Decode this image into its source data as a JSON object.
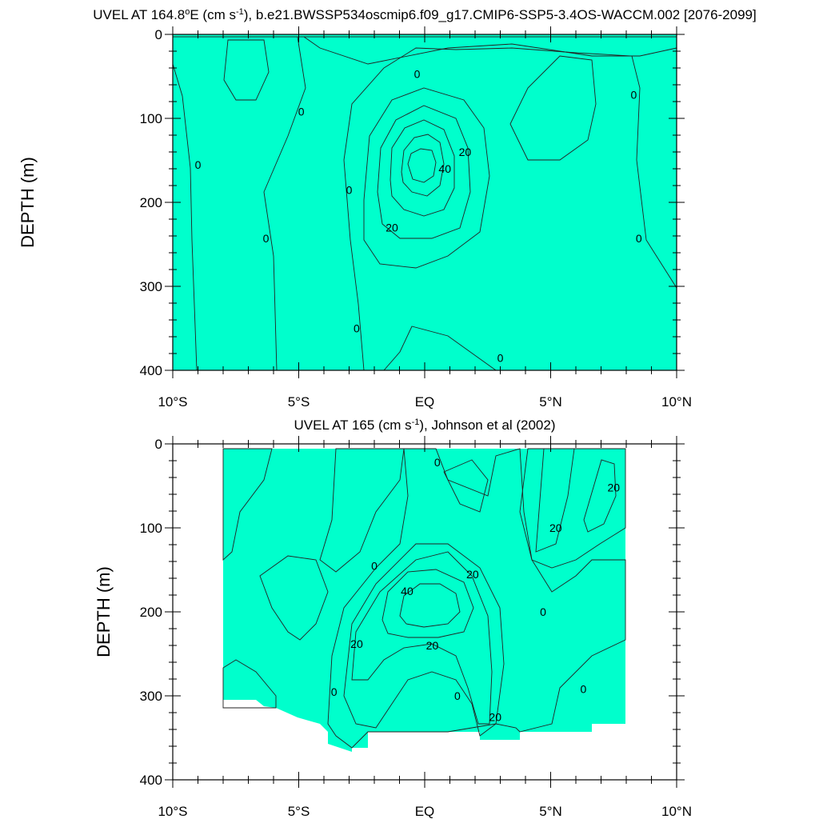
{
  "colors": {
    "cyan": "#00FFFF",
    "aqua": "#00FFCC",
    "green": "#00EE44",
    "lime": "#55FF00",
    "yellow": "#FFFF00",
    "lightorange": "#FFD030",
    "orange": "#FFAA33",
    "dark_orange": "#FF9922"
  },
  "chart_data": [
    {
      "type": "contour",
      "title_main": "UVEL AT 164.8",
      "title_sup1": "o",
      "title_mid": "E (cm s",
      "title_sup2": "-1",
      "title_end": "), b.e21.BWSSP534oscmip6.f09_g17.CMIP6-SSP5-3.4OS-WACCM.002 [2076-2099]",
      "ylabel": "DEPTH (m)",
      "xlim": [
        -10,
        10
      ],
      "ylim": [
        0,
        400
      ],
      "xticks": [
        "10°S",
        "5°S",
        "EQ",
        "5°N",
        "10°N"
      ],
      "yticks": [
        "0",
        "100",
        "200",
        "300",
        "400"
      ],
      "contour_interval": 10,
      "contour_labels": [
        {
          "x": -0.3,
          "y": 47,
          "text": "0"
        },
        {
          "x": -4.9,
          "y": 92,
          "text": "0"
        },
        {
          "x": -9.0,
          "y": 155,
          "text": "0"
        },
        {
          "x": -3.0,
          "y": 185,
          "text": "0"
        },
        {
          "x": -6.3,
          "y": 243,
          "text": "0"
        },
        {
          "x": -2.7,
          "y": 350,
          "text": "0"
        },
        {
          "x": 3.0,
          "y": 385,
          "text": "0"
        },
        {
          "x": 8.3,
          "y": 72,
          "text": "0"
        },
        {
          "x": 8.5,
          "y": 243,
          "text": "0"
        },
        {
          "x": 1.6,
          "y": 140,
          "text": "20"
        },
        {
          "x": -1.3,
          "y": 230,
          "text": "20"
        },
        {
          "x": 0.8,
          "y": 160,
          "text": "40"
        }
      ]
    },
    {
      "type": "contour",
      "title_main": "UVEL AT 165 (cm s",
      "title_sup2": "-1",
      "title_end": "), Johnson et al (2002)",
      "ylabel": "DEPTH (m)",
      "xlim": [
        -10,
        10
      ],
      "ylim": [
        0,
        400
      ],
      "xticks": [
        "10°S",
        "5°S",
        "EQ",
        "5°N",
        "10°N"
      ],
      "yticks": [
        "0",
        "100",
        "200",
        "300",
        "400"
      ],
      "contour_interval": 10,
      "contour_labels": [
        {
          "x": 0.5,
          "y": 22,
          "text": "0"
        },
        {
          "x": -2.0,
          "y": 145,
          "text": "0"
        },
        {
          "x": 4.7,
          "y": 200,
          "text": "0"
        },
        {
          "x": -3.6,
          "y": 295,
          "text": "0"
        },
        {
          "x": 1.3,
          "y": 300,
          "text": "0"
        },
        {
          "x": 6.3,
          "y": 292,
          "text": "0"
        },
        {
          "x": 7.5,
          "y": 52,
          "text": "20"
        },
        {
          "x": 5.2,
          "y": 100,
          "text": "20"
        },
        {
          "x": 1.9,
          "y": 155,
          "text": "20"
        },
        {
          "x": -2.7,
          "y": 238,
          "text": "20"
        },
        {
          "x": 0.3,
          "y": 240,
          "text": "20"
        },
        {
          "x": 2.8,
          "y": 325,
          "text": "20"
        },
        {
          "x": -0.7,
          "y": 175,
          "text": "40"
        }
      ]
    }
  ]
}
